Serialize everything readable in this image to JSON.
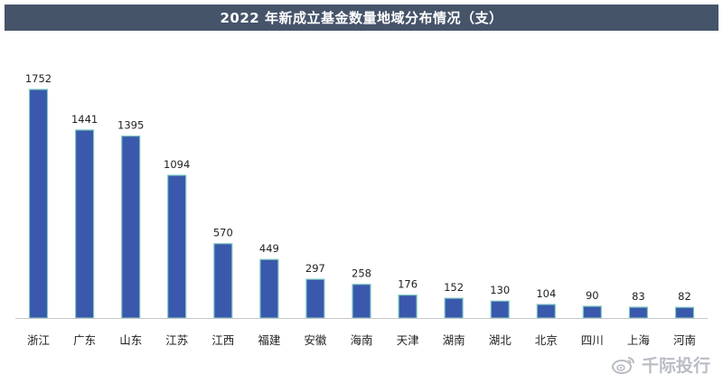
{
  "chart_data": {
    "type": "bar",
    "title": "2022 年新成立基金数量地域分布情况（支）",
    "categories": [
      "浙江",
      "广东",
      "山东",
      "江苏",
      "江西",
      "福建",
      "安徽",
      "海南",
      "天津",
      "湖南",
      "湖北",
      "北京",
      "四川",
      "上海",
      "河南"
    ],
    "values": [
      1752,
      1441,
      1395,
      1094,
      570,
      449,
      297,
      258,
      176,
      152,
      130,
      104,
      90,
      83,
      82
    ],
    "ylim": [
      0,
      1752
    ],
    "grid": false,
    "legend": "none",
    "bar_color": "#3a58ac",
    "bar_edge_color": "#7fc9c2"
  },
  "watermark": {
    "text": "千际投行",
    "icon": "weibo-icon"
  }
}
